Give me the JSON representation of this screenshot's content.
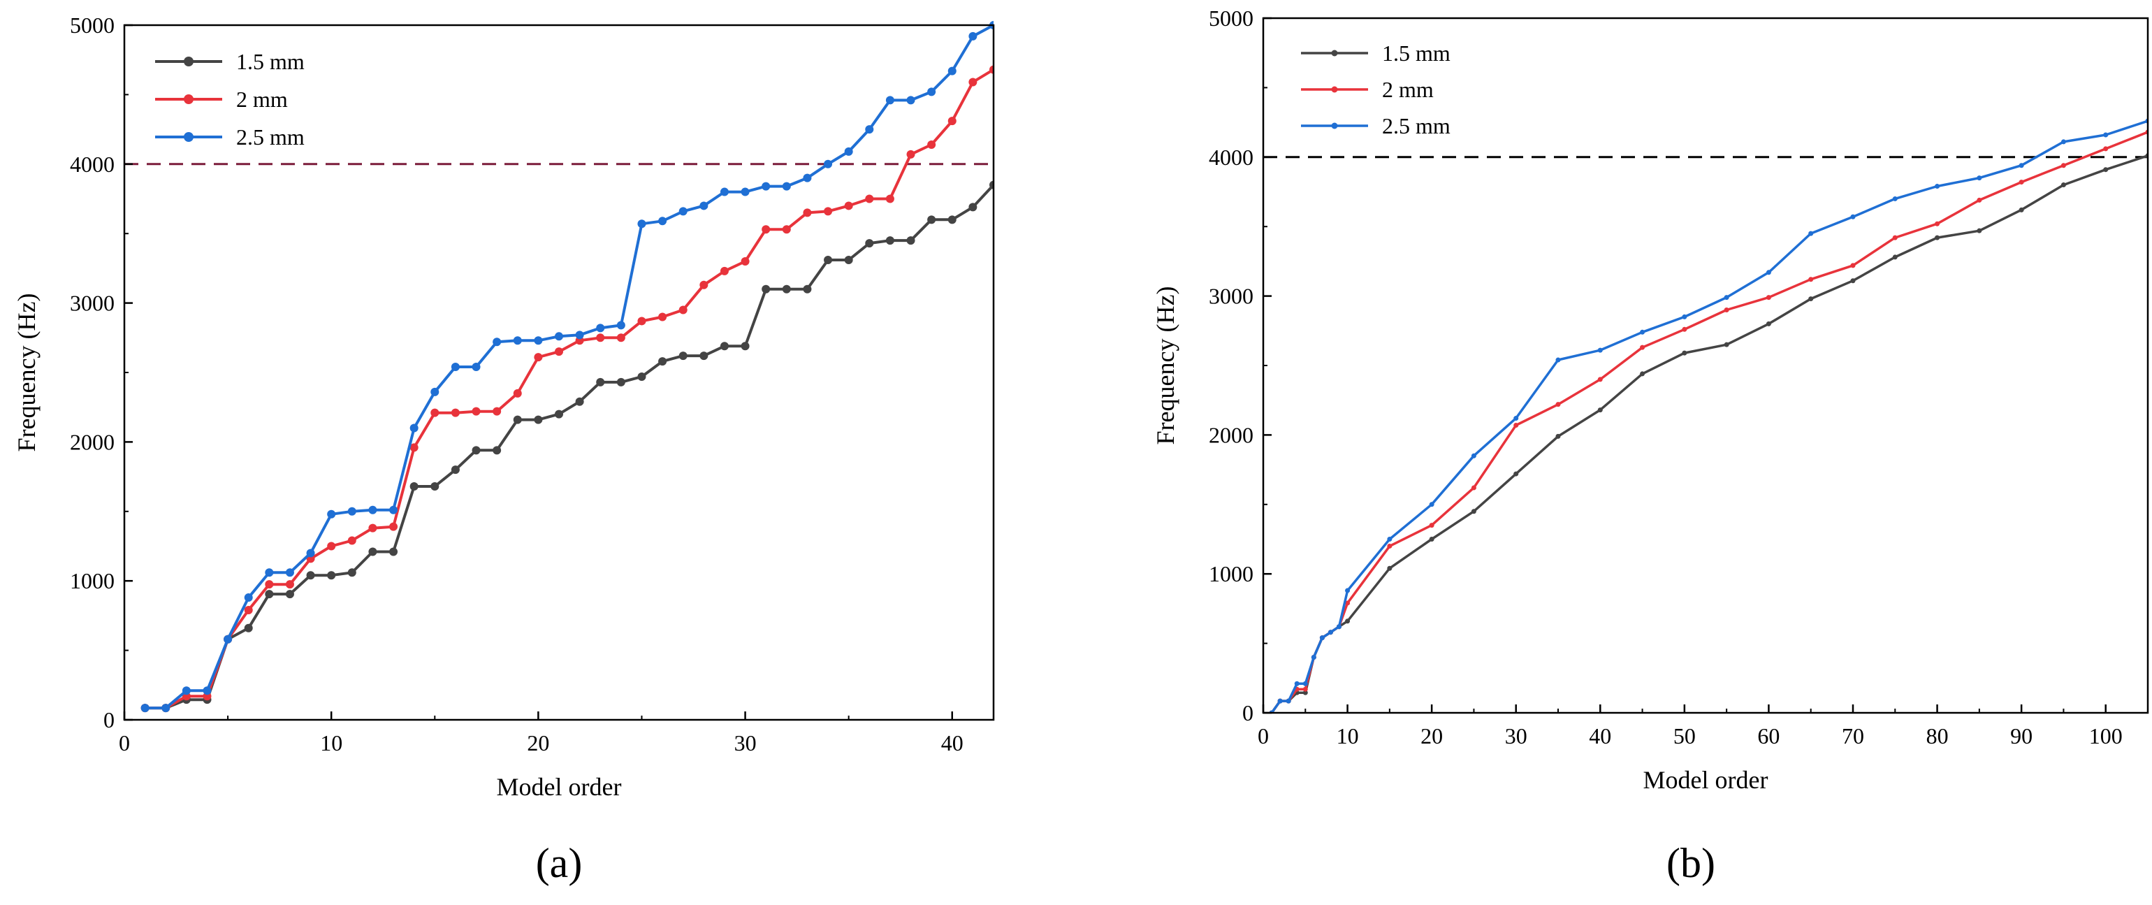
{
  "chart_data": [
    {
      "type": "line",
      "panel_label": "(a)",
      "xlabel": "Model order",
      "ylabel": "Frequency (Hz)",
      "xlim": [
        0,
        42
      ],
      "ylim": [
        0,
        5000
      ],
      "xticks": [
        0,
        10,
        20,
        30,
        40
      ],
      "yticks": [
        0,
        1000,
        2000,
        3000,
        4000,
        5000
      ],
      "reference_line": {
        "y": 4000,
        "style": "dashed",
        "color": "#7b1c3a"
      },
      "legend_position": "top-left",
      "markers": true,
      "series": [
        {
          "name": "1.5 mm",
          "color": "#444444",
          "x": [
            1,
            2,
            3,
            4,
            5,
            6,
            7,
            8,
            9,
            10,
            11,
            12,
            13,
            14,
            15,
            16,
            17,
            18,
            19,
            20,
            21,
            22,
            23,
            24,
            25,
            26,
            27,
            28,
            29,
            30,
            31,
            32,
            33,
            34,
            35,
            36,
            37,
            38,
            39,
            40,
            41,
            42
          ],
          "values": [
            85,
            85,
            145,
            145,
            580,
            660,
            905,
            905,
            1040,
            1040,
            1060,
            1210,
            1210,
            1680,
            1680,
            1800,
            1940,
            1940,
            2160,
            2160,
            2200,
            2290,
            2430,
            2430,
            2470,
            2580,
            2620,
            2620,
            2690,
            2690,
            3100,
            3100,
            3100,
            3310,
            3310,
            3430,
            3450,
            3450,
            3600,
            3600,
            3690,
            3850
          ]
        },
        {
          "name": "2 mm",
          "color": "#e8333b",
          "x": [
            1,
            2,
            3,
            4,
            5,
            6,
            7,
            8,
            9,
            10,
            11,
            12,
            13,
            14,
            15,
            16,
            17,
            18,
            19,
            20,
            21,
            22,
            23,
            24,
            25,
            26,
            27,
            28,
            29,
            30,
            31,
            32,
            33,
            34,
            35,
            36,
            37,
            38,
            39,
            40,
            41,
            42
          ],
          "values": [
            85,
            85,
            170,
            170,
            580,
            790,
            975,
            975,
            1160,
            1250,
            1290,
            1380,
            1390,
            1960,
            2210,
            2210,
            2220,
            2220,
            2350,
            2610,
            2650,
            2730,
            2750,
            2750,
            2870,
            2900,
            2950,
            3130,
            3230,
            3300,
            3530,
            3530,
            3650,
            3660,
            3700,
            3750,
            3750,
            4070,
            4140,
            4310,
            4590,
            4680
          ]
        },
        {
          "name": "2.5 mm",
          "color": "#1f6fd4",
          "x": [
            1,
            2,
            3,
            4,
            5,
            6,
            7,
            8,
            9,
            10,
            11,
            12,
            13,
            14,
            15,
            16,
            17,
            18,
            19,
            20,
            21,
            22,
            23,
            24,
            25,
            26,
            27,
            28,
            29,
            30,
            31,
            32,
            33,
            34,
            35,
            36,
            37,
            38,
            39,
            40,
            41,
            42
          ],
          "values": [
            85,
            85,
            210,
            210,
            580,
            880,
            1060,
            1060,
            1200,
            1480,
            1500,
            1510,
            1510,
            2100,
            2360,
            2540,
            2540,
            2720,
            2730,
            2730,
            2760,
            2770,
            2820,
            2840,
            3570,
            3590,
            3660,
            3700,
            3800,
            3800,
            3840,
            3840,
            3900,
            4000,
            4090,
            4250,
            4460,
            4460,
            4520,
            4670,
            4920,
            5000
          ]
        }
      ]
    },
    {
      "type": "line",
      "panel_label": "(b)",
      "xlabel": "Model order",
      "ylabel": "Frequency (Hz)",
      "xlim": [
        0,
        105
      ],
      "ylim": [
        0,
        5000
      ],
      "xticks": [
        0,
        10,
        20,
        30,
        40,
        50,
        60,
        70,
        80,
        90,
        100
      ],
      "yticks": [
        0,
        1000,
        2000,
        3000,
        4000,
        5000
      ],
      "reference_line": {
        "y": 4000,
        "style": "dashed",
        "color": "#000000"
      },
      "legend_position": "top-left",
      "markers": true,
      "series": [
        {
          "name": "1.5 mm",
          "color": "#444444",
          "x": [
            1,
            2,
            3,
            4,
            5,
            6,
            7,
            8,
            9,
            10,
            15,
            20,
            25,
            30,
            35,
            40,
            45,
            50,
            55,
            60,
            65,
            70,
            75,
            80,
            85,
            90,
            95,
            100,
            105
          ],
          "values": [
            0,
            85,
            85,
            145,
            145,
            400,
            540,
            580,
            620,
            660,
            1040,
            1250,
            1450,
            1720,
            1990,
            2180,
            2440,
            2590,
            2650,
            2800,
            2980,
            3110,
            3280,
            3420,
            3470,
            3620,
            3800,
            3910,
            4010
          ]
        },
        {
          "name": "2 mm",
          "color": "#e8333b",
          "x": [
            1,
            2,
            3,
            4,
            5,
            6,
            7,
            8,
            9,
            10,
            15,
            20,
            25,
            30,
            35,
            40,
            45,
            50,
            55,
            60,
            65,
            70,
            75,
            80,
            85,
            90,
            95,
            100,
            105
          ],
          "values": [
            0,
            85,
            85,
            170,
            170,
            400,
            540,
            580,
            620,
            790,
            1200,
            1350,
            1620,
            2070,
            2220,
            2400,
            2630,
            2760,
            2900,
            2990,
            3120,
            3220,
            3420,
            3520,
            3690,
            3820,
            3940,
            4060,
            4180
          ]
        },
        {
          "name": "2.5 mm",
          "color": "#1f6fd4",
          "x": [
            1,
            2,
            3,
            4,
            5,
            6,
            7,
            8,
            9,
            10,
            15,
            20,
            25,
            30,
            35,
            40,
            45,
            50,
            55,
            60,
            65,
            70,
            75,
            80,
            85,
            90,
            95,
            100,
            105
          ],
          "values": [
            0,
            85,
            85,
            210,
            210,
            400,
            540,
            580,
            620,
            880,
            1250,
            1500,
            1850,
            2120,
            2540,
            2610,
            2740,
            2850,
            2990,
            3170,
            3450,
            3570,
            3700,
            3790,
            3850,
            3940,
            4110,
            4160,
            4260
          ]
        }
      ]
    }
  ]
}
